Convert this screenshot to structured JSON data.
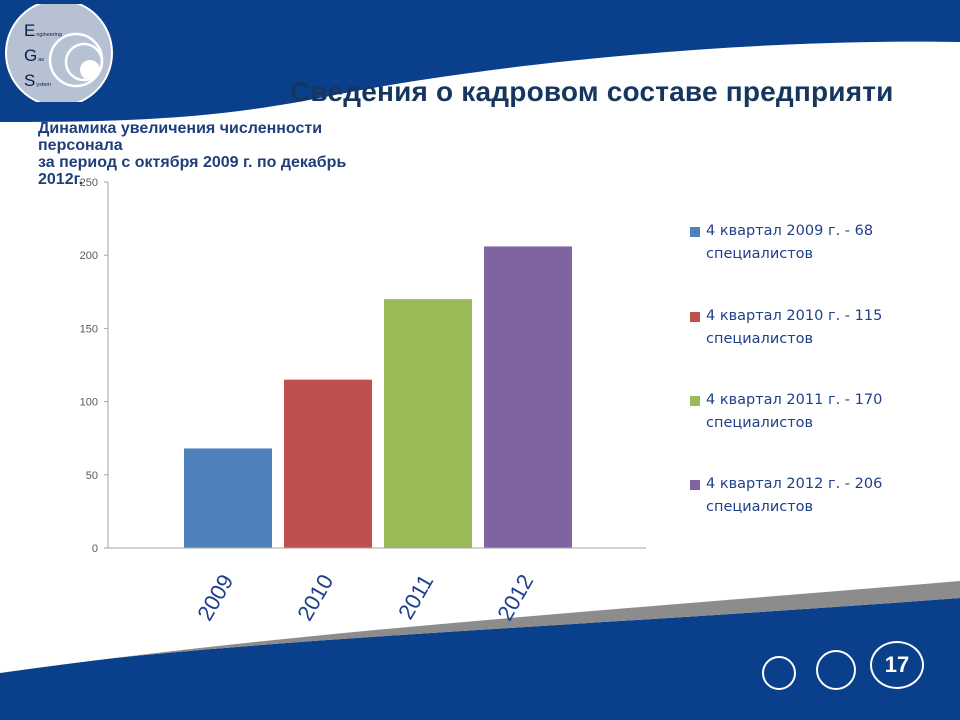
{
  "slide": {
    "title": "Сведения о кадровом составе предприяти",
    "subtitle_lines": [
      "Динамика увеличения численности",
      "персонала",
      "за период с октября 2009 г. по декабрь",
      "2012г."
    ],
    "page_number": "17"
  },
  "logo": {
    "rows": [
      {
        "cap": "E",
        "rest": "ngineering"
      },
      {
        "cap": "G",
        "rest": "as"
      },
      {
        "cap": "S",
        "rest": "ystem"
      }
    ]
  },
  "colors": {
    "brand_blue": "#0a3f8c",
    "title": "#17365d",
    "series": [
      "#4f81bd",
      "#c0504d",
      "#9bbb59",
      "#8064a2"
    ]
  },
  "legend": {
    "items": [
      {
        "line1": "4 квартал 2009 г. - 68",
        "line2": "специалистов"
      },
      {
        "line1": "4 квартал 2010 г. - 115",
        "line2": "специалистов"
      },
      {
        "line1": "4 квартал 2011 г. - 170",
        "line2": "специалистов"
      },
      {
        "line1": "4 квартал 2012 г. - 206",
        "line2": "специалистов"
      }
    ]
  },
  "chart_data": {
    "type": "bar",
    "categories": [
      "2009",
      "2010",
      "2011",
      "2012"
    ],
    "values": [
      68,
      115,
      170,
      206
    ],
    "ylim": [
      0,
      250
    ],
    "yticks": [
      "0",
      "50",
      "100",
      "150",
      "200",
      "250"
    ],
    "grid": false,
    "legend_position": "right"
  }
}
